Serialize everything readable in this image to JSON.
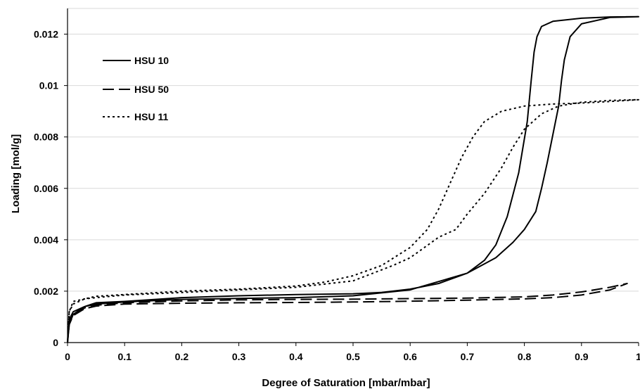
{
  "chart_data": {
    "type": "line",
    "xlabel": "Degree of Saturation [mbar/mbar]",
    "ylabel": "Loading [mol/g]",
    "xlim": [
      0,
      1
    ],
    "ylim": [
      0,
      0.013
    ],
    "xticks": [
      "0",
      "0.1",
      "0.2",
      "0.3",
      "0.4",
      "0.5",
      "0.6",
      "0.7",
      "0.8",
      "0.9",
      "1"
    ],
    "xtick_values": [
      0,
      0.1,
      0.2,
      0.3,
      0.4,
      0.5,
      0.6,
      0.7,
      0.8,
      0.9,
      1
    ],
    "yticks": [
      "0",
      "0.002",
      "0.004",
      "0.006",
      "0.008",
      "0.01",
      "0.012"
    ],
    "ytick_values": [
      0,
      0.002,
      0.004,
      0.006,
      0.008,
      0.01,
      0.012
    ],
    "grid": "horizontal",
    "legend_position": "top-left",
    "series": [
      {
        "name": "HSU 10",
        "style": "solid",
        "color": "#000000",
        "x": [
          0,
          0.003,
          0.01,
          0.03,
          0.05,
          0.1,
          0.2,
          0.3,
          0.4,
          0.5,
          0.55,
          0.6,
          0.65,
          0.7,
          0.73,
          0.75,
          0.77,
          0.79,
          0.805,
          0.812,
          0.817,
          0.822,
          0.83,
          0.85,
          0.9,
          0.95,
          1.0,
          0.95,
          0.9,
          0.88,
          0.87,
          0.865,
          0.86,
          0.85,
          0.84,
          0.83,
          0.82,
          0.8,
          0.78,
          0.75,
          0.7,
          0.6,
          0.5,
          0.4,
          0.3,
          0.2,
          0.1,
          0.05,
          0.03,
          0.01,
          0.003,
          0
        ],
        "y": [
          0,
          0.0009,
          0.0012,
          0.0014,
          0.00155,
          0.0016,
          0.00175,
          0.00182,
          0.00187,
          0.0019,
          0.00195,
          0.00208,
          0.0023,
          0.0027,
          0.0032,
          0.0038,
          0.0049,
          0.0066,
          0.0086,
          0.0102,
          0.0113,
          0.0119,
          0.0123,
          0.0125,
          0.01262,
          0.01267,
          0.01268,
          0.01265,
          0.0124,
          0.0119,
          0.011,
          0.0102,
          0.0092,
          0.0081,
          0.007,
          0.006,
          0.0051,
          0.0044,
          0.0039,
          0.0033,
          0.0027,
          0.00205,
          0.00182,
          0.00175,
          0.00172,
          0.00168,
          0.00158,
          0.0015,
          0.0014,
          0.0011,
          0.0007,
          0
        ]
      },
      {
        "name": "HSU 50",
        "style": "dashed",
        "color": "#000000",
        "x": [
          0,
          0.003,
          0.01,
          0.03,
          0.05,
          0.1,
          0.2,
          0.3,
          0.4,
          0.5,
          0.6,
          0.7,
          0.8,
          0.85,
          0.9,
          0.95,
          0.98,
          0.95,
          0.9,
          0.85,
          0.8,
          0.7,
          0.6,
          0.5,
          0.4,
          0.3,
          0.2,
          0.1,
          0.05,
          0.03,
          0.01,
          0.003,
          0
        ],
        "y": [
          0,
          0.0008,
          0.0011,
          0.00135,
          0.00145,
          0.00155,
          0.00162,
          0.00166,
          0.00168,
          0.00169,
          0.00171,
          0.00173,
          0.00178,
          0.00185,
          0.00197,
          0.00215,
          0.0023,
          0.00205,
          0.00185,
          0.00175,
          0.0017,
          0.00165,
          0.00161,
          0.00158,
          0.00156,
          0.00155,
          0.00153,
          0.0015,
          0.00142,
          0.00132,
          0.00105,
          0.0007,
          0
        ]
      },
      {
        "name": "HSU 11",
        "style": "dotted",
        "color": "#000000",
        "x": [
          0,
          0.003,
          0.01,
          0.03,
          0.05,
          0.1,
          0.2,
          0.3,
          0.4,
          0.45,
          0.5,
          0.55,
          0.6,
          0.63,
          0.65,
          0.67,
          0.69,
          0.71,
          0.73,
          0.76,
          0.8,
          0.85,
          0.9,
          0.95,
          1.0,
          0.95,
          0.9,
          0.86,
          0.83,
          0.8,
          0.78,
          0.76,
          0.73,
          0.7,
          0.68,
          0.65,
          0.6,
          0.57,
          0.5,
          0.4,
          0.3,
          0.2,
          0.1,
          0.05,
          0.03,
          0.01,
          0.003,
          0
        ],
        "y": [
          0,
          0.0012,
          0.0015,
          0.0017,
          0.0018,
          0.00187,
          0.002,
          0.00208,
          0.0022,
          0.00235,
          0.0026,
          0.003,
          0.0037,
          0.0044,
          0.0052,
          0.0062,
          0.0072,
          0.008,
          0.0086,
          0.009,
          0.0092,
          0.00928,
          0.00932,
          0.00938,
          0.00945,
          0.00942,
          0.00935,
          0.0092,
          0.0089,
          0.0083,
          0.0076,
          0.0068,
          0.0058,
          0.005,
          0.0044,
          0.0041,
          0.0033,
          0.003,
          0.0024,
          0.00215,
          0.00205,
          0.00195,
          0.00185,
          0.00175,
          0.0017,
          0.0016,
          0.0012,
          0
        ]
      }
    ]
  }
}
